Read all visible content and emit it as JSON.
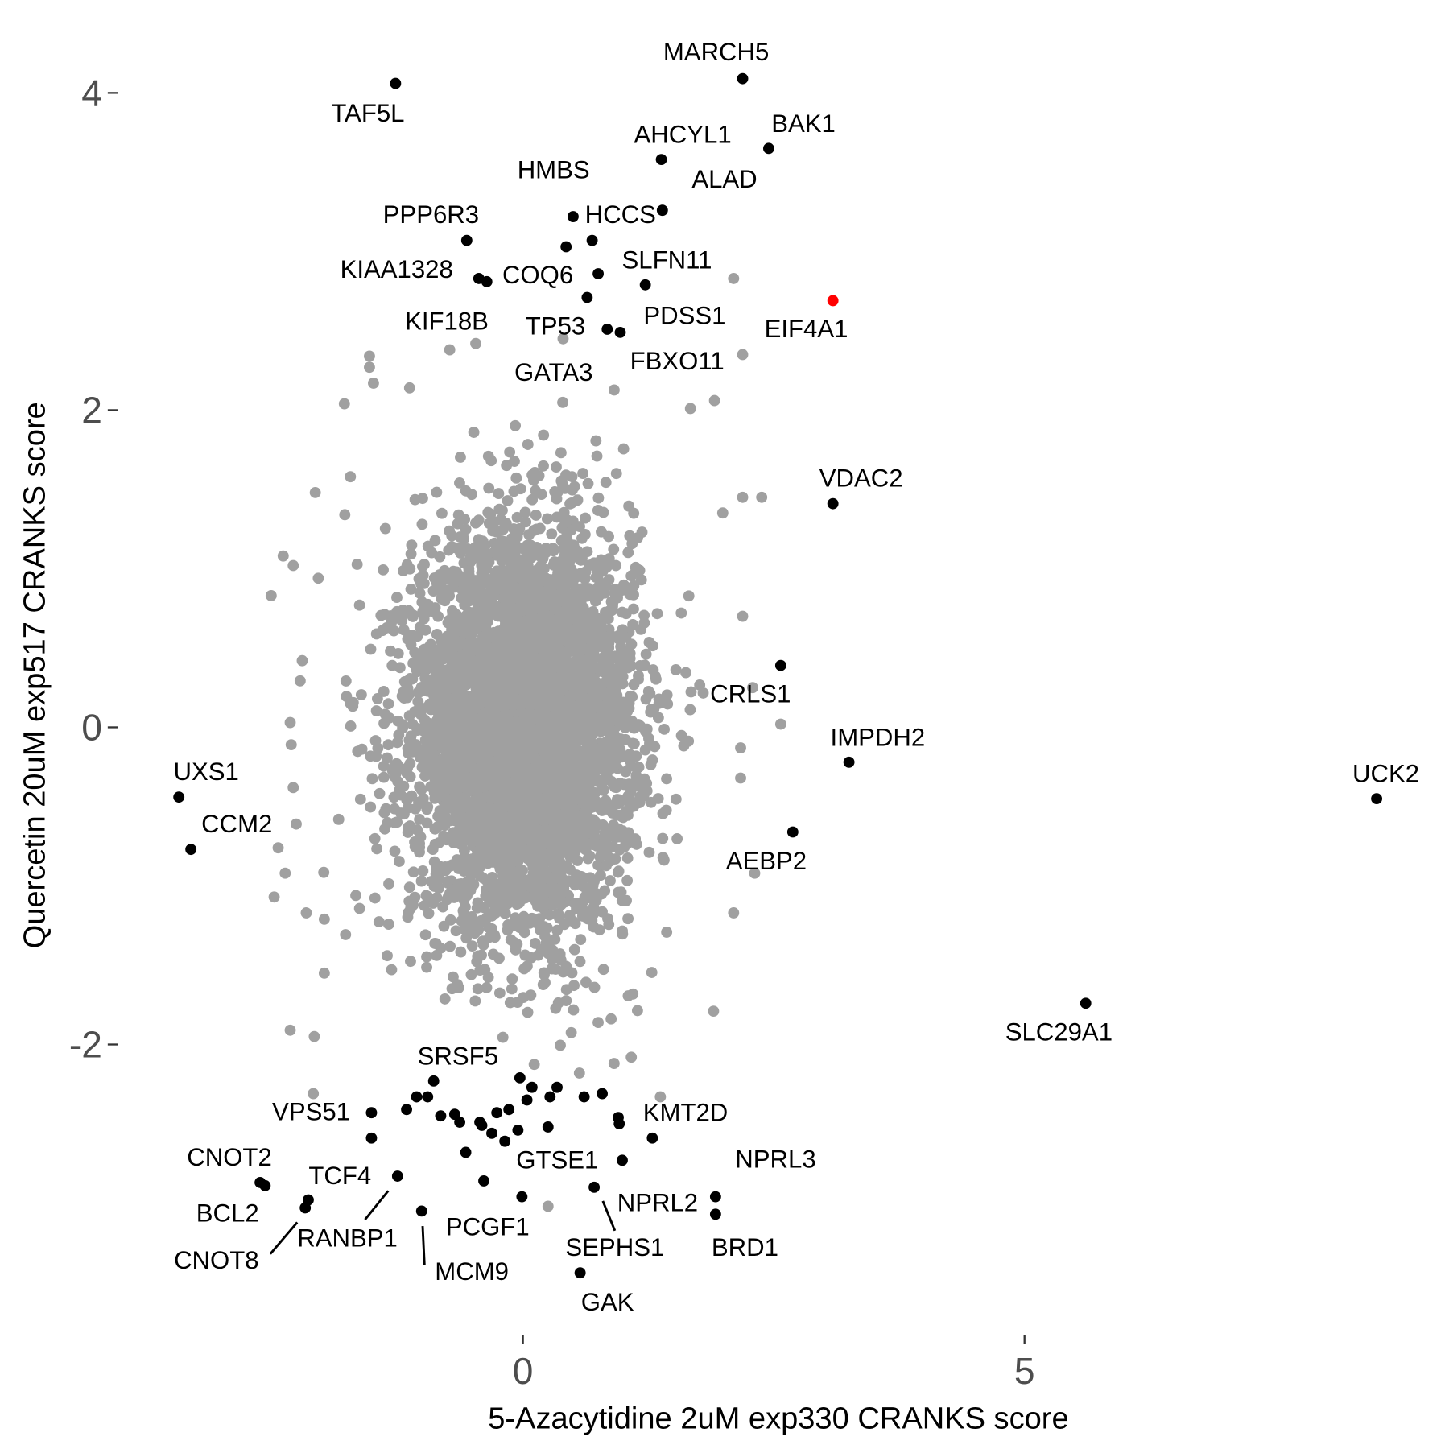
{
  "chart_data": {
    "type": "scatter",
    "xlabel": "5-Azacytidine 2uM exp330 CRANKS score",
    "ylabel": "Quercetin 20uM exp517 CRANKS score",
    "xlim": [
      -3.7,
      9.0
    ],
    "ylim": [
      -3.7,
      4.35
    ],
    "x_ticks": [
      0,
      5
    ],
    "x_tick_labels": [
      "0",
      "5"
    ],
    "y_ticks": [
      4,
      2,
      0,
      -2
    ],
    "y_tick_labels": [
      "4",
      "2",
      "0",
      "-2"
    ],
    "grid": false,
    "colors": {
      "background_points": "#A0A0A0",
      "highlight_points": "#000000",
      "special_point": "#FF0000",
      "tick_text": "#4D4D4D"
    },
    "background_cloud": {
      "description_color": "#A0A0A0",
      "n": 5000,
      "mean": [
        0.0,
        0.0
      ],
      "sd": [
        0.55,
        0.62
      ]
    },
    "background_points": [
      [
        2.1,
        2.83
      ],
      [
        2.19,
        2.35
      ],
      [
        0.4,
        2.45
      ],
      [
        -0.47,
        2.42
      ],
      [
        -0.73,
        2.38
      ],
      [
        -1.53,
        2.34
      ],
      [
        -1.53,
        2.27
      ],
      [
        -1.49,
        2.17
      ],
      [
        -1.13,
        2.14
      ],
      [
        -1.78,
        2.04
      ],
      [
        1.91,
        2.06
      ],
      [
        1.67,
        2.01
      ],
      [
        2.38,
        1.45
      ],
      [
        2.19,
        1.45
      ],
      [
        -2.07,
        1.48
      ],
      [
        -1.72,
        1.58
      ],
      [
        -2.51,
        0.83
      ],
      [
        -2.39,
        1.08
      ],
      [
        -2.29,
        1.02
      ],
      [
        -2.04,
        0.94
      ],
      [
        2.57,
        0.02
      ],
      [
        2.19,
        0.7
      ],
      [
        -2.2,
        0.42
      ],
      [
        -2.32,
        0.03
      ],
      [
        -2.31,
        -0.11
      ],
      [
        -2.29,
        -0.38
      ],
      [
        -2.26,
        -0.61
      ],
      [
        -2.44,
        -0.76
      ],
      [
        -2.37,
        -0.92
      ],
      [
        -2.48,
        -1.07
      ],
      [
        -2.16,
        -1.17
      ],
      [
        -1.98,
        -1.21
      ],
      [
        -1.98,
        -1.55
      ],
      [
        -2.32,
        -1.91
      ],
      [
        -2.08,
        -1.95
      ],
      [
        -2.09,
        -2.31
      ],
      [
        2.31,
        -0.92
      ],
      [
        2.1,
        -1.17
      ],
      [
        1.9,
        -1.79
      ],
      [
        1.37,
        -2.33
      ],
      [
        1.08,
        -2.08
      ],
      [
        0.25,
        -3.02
      ],
      [
        2.17,
        -0.13
      ],
      [
        2.17,
        -0.32
      ],
      [
        2.29,
        0.25
      ]
    ],
    "highlight_points": [
      {
        "label": "MARCH5",
        "x": 2.19,
        "y": 4.09
      },
      {
        "label": "TAF5L",
        "x": -1.27,
        "y": 4.06
      },
      {
        "label": "BAK1",
        "x": 2.45,
        "y": 3.65
      },
      {
        "label": "AHCYL1",
        "x": 1.38,
        "y": 3.58
      },
      {
        "label": "ALAD",
        "x": 1.39,
        "y": 3.26
      },
      {
        "label": "HMBS",
        "x": 0.5,
        "y": 3.22
      },
      {
        "label": "HCCS",
        "x": 0.69,
        "y": 3.07
      },
      {
        "label": "",
        "x": 0.43,
        "y": 3.03
      },
      {
        "label": "PPP6R3",
        "x": -0.56,
        "y": 3.07
      },
      {
        "label": "KIAA1328",
        "x": -0.44,
        "y": 2.83
      },
      {
        "label": "",
        "x": -0.36,
        "y": 2.81
      },
      {
        "label": "COQ6",
        "x": 0.75,
        "y": 2.86
      },
      {
        "label": "SLFN11",
        "x": 1.22,
        "y": 2.79
      },
      {
        "label": "KIF18B",
        "x": 0.64,
        "y": 2.71
      },
      {
        "label": "TP53",
        "x": 0.84,
        "y": 2.51
      },
      {
        "label": "PDSS1",
        "x": 0.97,
        "y": 2.49
      },
      {
        "label": "VDAC2",
        "x": 3.09,
        "y": 1.41
      },
      {
        "label": "CRLS1",
        "x": 2.57,
        "y": 0.39
      },
      {
        "label": "IMPDH2",
        "x": 3.25,
        "y": -0.22
      },
      {
        "label": "AEBP2",
        "x": 2.69,
        "y": -0.66
      },
      {
        "label": "UCK2",
        "x": 8.51,
        "y": -0.45
      },
      {
        "label": "SLC29A1",
        "x": 5.61,
        "y": -1.74
      },
      {
        "label": "UXS1",
        "x": -3.43,
        "y": -0.44
      },
      {
        "label": "CCM2",
        "x": -3.31,
        "y": -0.77
      },
      {
        "label": "SRSF5",
        "x": -0.89,
        "y": -2.23
      },
      {
        "label": "",
        "x": -1.06,
        "y": -2.33
      },
      {
        "label": "",
        "x": -0.95,
        "y": -2.33
      },
      {
        "label": "",
        "x": -1.16,
        "y": -2.41
      },
      {
        "label": "",
        "x": -0.82,
        "y": -2.45
      },
      {
        "label": "",
        "x": -0.68,
        "y": -2.44
      },
      {
        "label": "",
        "x": -0.63,
        "y": -2.49
      },
      {
        "label": "",
        "x": -0.43,
        "y": -2.49
      },
      {
        "label": "",
        "x": -0.41,
        "y": -2.51
      },
      {
        "label": "",
        "x": -0.31,
        "y": -2.56
      },
      {
        "label": "",
        "x": -0.26,
        "y": -2.43
      },
      {
        "label": "",
        "x": -0.18,
        "y": -2.61
      },
      {
        "label": "",
        "x": -0.14,
        "y": -2.41
      },
      {
        "label": "",
        "x": -0.03,
        "y": -2.21
      },
      {
        "label": "",
        "x": 0.04,
        "y": -2.35
      },
      {
        "label": "",
        "x": 0.09,
        "y": -2.27
      },
      {
        "label": "",
        "x": -0.05,
        "y": -2.54
      },
      {
        "label": "",
        "x": 0.25,
        "y": -2.52
      },
      {
        "label": "",
        "x": 0.27,
        "y": -2.33
      },
      {
        "label": "",
        "x": 0.34,
        "y": -2.27
      },
      {
        "label": "",
        "x": 0.61,
        "y": -2.33
      },
      {
        "label": "",
        "x": 0.79,
        "y": -2.31
      },
      {
        "label": "KMT2D",
        "x": 0.95,
        "y": -2.46
      },
      {
        "label": "",
        "x": 0.96,
        "y": -2.5
      },
      {
        "label": "",
        "x": 1.29,
        "y": -2.59
      },
      {
        "label": "GTSE1",
        "x": 0.99,
        "y": -2.73
      },
      {
        "label": "NPRL2",
        "x": 0.71,
        "y": -2.9
      },
      {
        "label": "VPS51",
        "x": -1.51,
        "y": -2.43
      },
      {
        "label": "",
        "x": -1.51,
        "y": -2.59
      },
      {
        "label": "TCF4",
        "x": -1.25,
        "y": -2.83
      },
      {
        "label": "",
        "x": -0.57,
        "y": -2.68
      },
      {
        "label": "",
        "x": -0.39,
        "y": -2.86
      },
      {
        "label": "PCGF1",
        "x": -0.01,
        "y": -2.96
      },
      {
        "label": "MCM9",
        "x": -1.01,
        "y": -3.05
      },
      {
        "label": "CNOT2",
        "x": -2.62,
        "y": -2.87
      },
      {
        "label": "",
        "x": -2.57,
        "y": -2.89
      },
      {
        "label": "BCL2",
        "x": -2.14,
        "y": -2.98
      },
      {
        "label": "CNOT8",
        "x": -2.17,
        "y": -3.03
      },
      {
        "label": "NPRL3",
        "x": 1.92,
        "y": -2.96
      },
      {
        "label": "BRD1",
        "x": 1.92,
        "y": -3.07
      },
      {
        "label": "GAK",
        "x": 0.57,
        "y": -3.44
      }
    ],
    "special_point": {
      "label": "EIF4A1",
      "x": 3.09,
      "y": 2.69
    },
    "point_labels": [
      "MARCH5",
      "TAF5L",
      "BAK1",
      "AHCYL1",
      "HMBS",
      "ALAD",
      "PPP6R3",
      "HCCS",
      "KIAA1328",
      "COQ6",
      "SLFN11",
      "KIF18B",
      "TP53",
      "PDSS1",
      "EIF4A1",
      "FBXO11",
      "GATA3",
      "VDAC2",
      "CRLS1",
      "IMPDH2",
      "UXS1",
      "UCK2",
      "CCM2",
      "AEBP2",
      "SLC29A1",
      "SRSF5",
      "VPS51",
      "KMT2D",
      "CNOT2",
      "GTSE1",
      "NPRL3",
      "TCF4",
      "BCL2",
      "NPRL2",
      "PCGF1",
      "RANBP1",
      "SEPHS1",
      "BRD1",
      "CNOT8",
      "MCM9",
      "GAK"
    ]
  }
}
